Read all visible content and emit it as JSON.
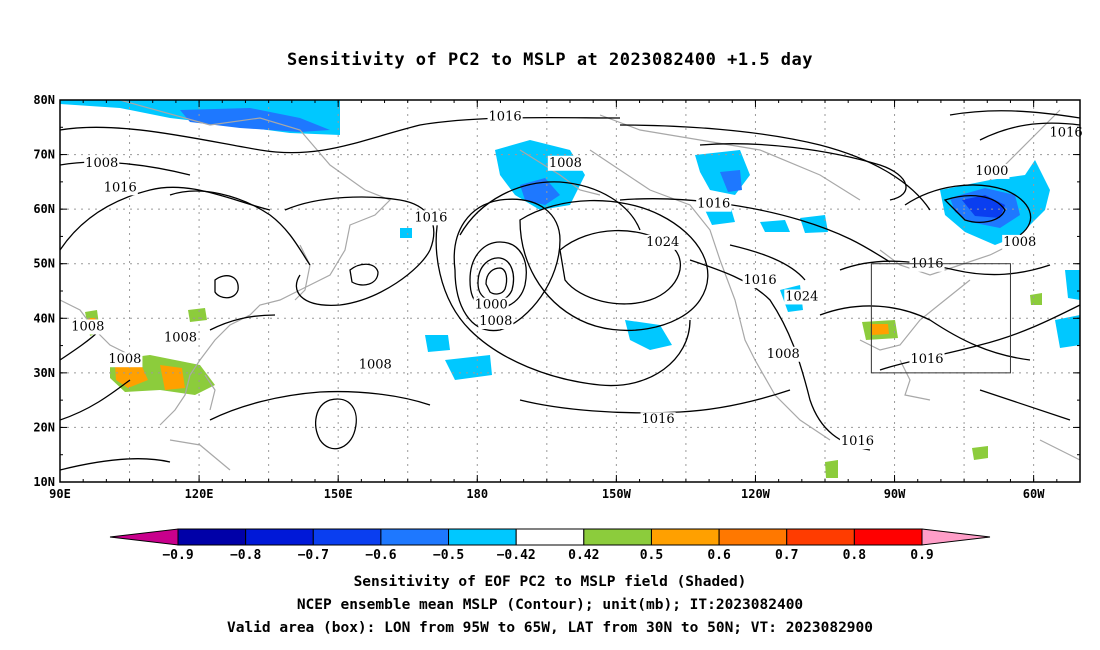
{
  "title": "Sensitivity of PC2 to MSLP at 2023082400 +1.5 day",
  "map": {
    "lat_ticks": [
      "80N",
      "70N",
      "60N",
      "50N",
      "40N",
      "30N",
      "20N",
      "10N"
    ],
    "lon_ticks": [
      "90E",
      "120E",
      "150E",
      "180",
      "150W",
      "120W",
      "90W",
      "60W"
    ],
    "contour_labels": [
      {
        "text": "1016",
        "lon": -174,
        "lat": 77
      },
      {
        "text": "1008",
        "lon": -161,
        "lat": 68.5
      },
      {
        "text": "1000",
        "lon": -69,
        "lat": 67
      },
      {
        "text": "1016",
        "lon": -53,
        "lat": 74
      },
      {
        "text": "1008",
        "lon": 99,
        "lat": 68.5
      },
      {
        "text": "1016",
        "lon": 103,
        "lat": 64
      },
      {
        "text": "1016",
        "lon": 170,
        "lat": 58.5
      },
      {
        "text": "1016",
        "lon": -129,
        "lat": 61
      },
      {
        "text": "1024",
        "lon": -140,
        "lat": 54
      },
      {
        "text": "1008",
        "lon": -63,
        "lat": 54
      },
      {
        "text": "1016",
        "lon": -83,
        "lat": 50
      },
      {
        "text": "1016",
        "lon": -119,
        "lat": 47
      },
      {
        "text": "1024",
        "lon": -110,
        "lat": 44
      },
      {
        "text": "1000",
        "lon": -177,
        "lat": 42.5
      },
      {
        "text": "1008",
        "lon": -176,
        "lat": 39.5
      },
      {
        "text": "1008",
        "lon": 96,
        "lat": 38.5
      },
      {
        "text": "1008",
        "lon": 116,
        "lat": 36.5
      },
      {
        "text": "1008",
        "lon": 104,
        "lat": 32.5
      },
      {
        "text": "1008",
        "lon": 158,
        "lat": 31.5
      },
      {
        "text": "1008",
        "lon": -114,
        "lat": 33.5
      },
      {
        "text": "1016",
        "lon": -83,
        "lat": 32.5
      },
      {
        "text": "1016",
        "lon": -141,
        "lat": 21.5
      },
      {
        "text": "1016",
        "lon": -98,
        "lat": 17.5
      }
    ],
    "valid_box": {
      "lon_min": -95,
      "lon_max": -65,
      "lat_min": 30,
      "lat_max": 50
    }
  },
  "colorbar": {
    "labels": [
      "-0.9",
      "-0.8",
      "-0.7",
      "-0.6",
      "-0.5",
      "-0.42",
      "0.42",
      "0.5",
      "0.6",
      "0.7",
      "0.8",
      "0.9"
    ],
    "colors": [
      "#0000a8",
      "#0018d8",
      "#0a3ef0",
      "#1e78ff",
      "#00c8ff",
      "#ffffff",
      "#8ccc3c",
      "#ffa000",
      "#ff7800",
      "#ff3c00",
      "#ff0000"
    ],
    "low_end_color": "#c8008c",
    "high_end_color": "#ff9ec8"
  },
  "captions": {
    "line1": "Sensitivity of EOF PC2 to MSLP field (Shaded)",
    "line2": "NCEP ensemble mean MSLP (Contour); unit(mb); IT:2023082400",
    "line3": "Valid area (box): LON from 95W to 65W, LAT from 30N to 50N; VT: 2023082900"
  }
}
